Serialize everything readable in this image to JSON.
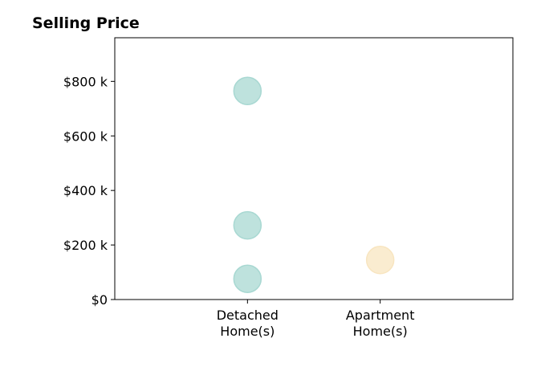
{
  "chart_data": {
    "type": "scatter",
    "title": "Selling Price",
    "xlabel": "",
    "ylabel": "",
    "categories": [
      [
        "Detached",
        "Home(s)"
      ],
      [
        "Apartment",
        "Home(s)"
      ]
    ],
    "xlim": [
      -1,
      2
    ],
    "ylim": [
      0,
      960000
    ],
    "yticks": [
      {
        "value": 0,
        "label": "$0"
      },
      {
        "value": 200000,
        "label": "$200 k"
      },
      {
        "value": 400000,
        "label": "$400 k"
      },
      {
        "value": 600000,
        "label": "$600 k"
      },
      {
        "value": 800000,
        "label": "$800 k"
      }
    ],
    "grid": false,
    "legend": "none",
    "points": [
      {
        "category": 0,
        "value": 765000,
        "color": "#a8d8d2"
      },
      {
        "category": 0,
        "value": 272000,
        "color": "#a8d8d2"
      },
      {
        "category": 0,
        "value": 76000,
        "color": "#a8d8d2"
      },
      {
        "category": 1,
        "value": 145000,
        "color": "#f8e5c0"
      }
    ],
    "colors": {
      "detached": "#a8d8d2",
      "apartment": "#f8e5c0"
    }
  }
}
